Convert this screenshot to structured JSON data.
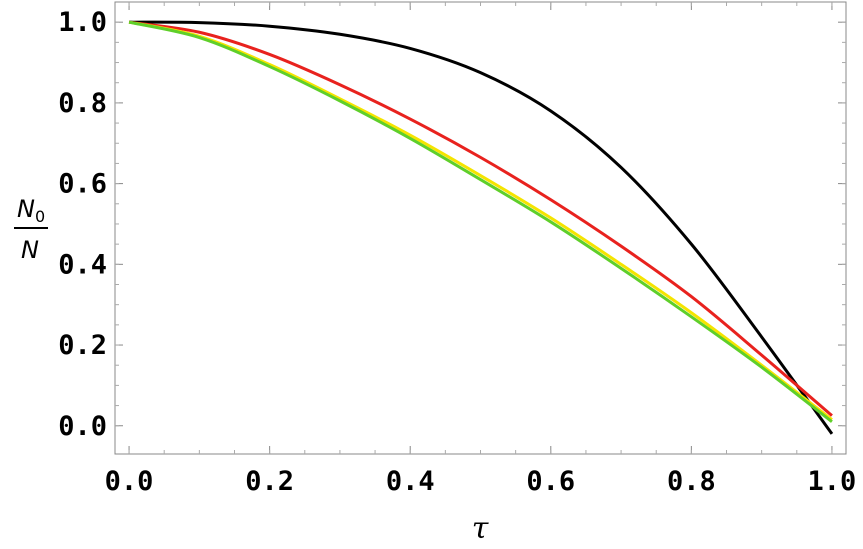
{
  "chart_data": {
    "type": "line",
    "title": "",
    "xlabel": "τ",
    "ylabel": {
      "numerator": "N",
      "numerator_subscript": "0",
      "denominator": "N"
    },
    "xlim": [
      -0.02,
      1.02
    ],
    "ylim": [
      -0.07,
      1.05
    ],
    "xticks": [
      "0.0",
      "0.2",
      "0.4",
      "0.6",
      "0.8",
      "1.0"
    ],
    "yticks": [
      "0.0",
      "0.2",
      "0.4",
      "0.6",
      "0.8",
      "1.0"
    ],
    "grid": false,
    "legend": "none",
    "x": [
      0.0,
      0.1,
      0.2,
      0.3,
      0.4,
      0.5,
      0.6,
      0.7,
      0.8,
      0.9,
      1.0
    ],
    "series": [
      {
        "color": "#000000",
        "values": [
          1.0,
          0.999,
          0.99,
          0.97,
          0.935,
          0.875,
          0.78,
          0.64,
          0.45,
          0.22,
          -0.02
        ]
      },
      {
        "color": "#e8221e",
        "values": [
          1.0,
          0.975,
          0.92,
          0.845,
          0.76,
          0.665,
          0.56,
          0.445,
          0.32,
          0.175,
          0.025
        ]
      },
      {
        "color": "#f5e400",
        "values": [
          1.0,
          0.965,
          0.895,
          0.81,
          0.72,
          0.62,
          0.515,
          0.4,
          0.28,
          0.15,
          0.015
        ]
      },
      {
        "color": "#5fcf2a",
        "values": [
          1.0,
          0.962,
          0.89,
          0.805,
          0.712,
          0.61,
          0.505,
          0.39,
          0.27,
          0.145,
          0.01
        ]
      }
    ]
  }
}
